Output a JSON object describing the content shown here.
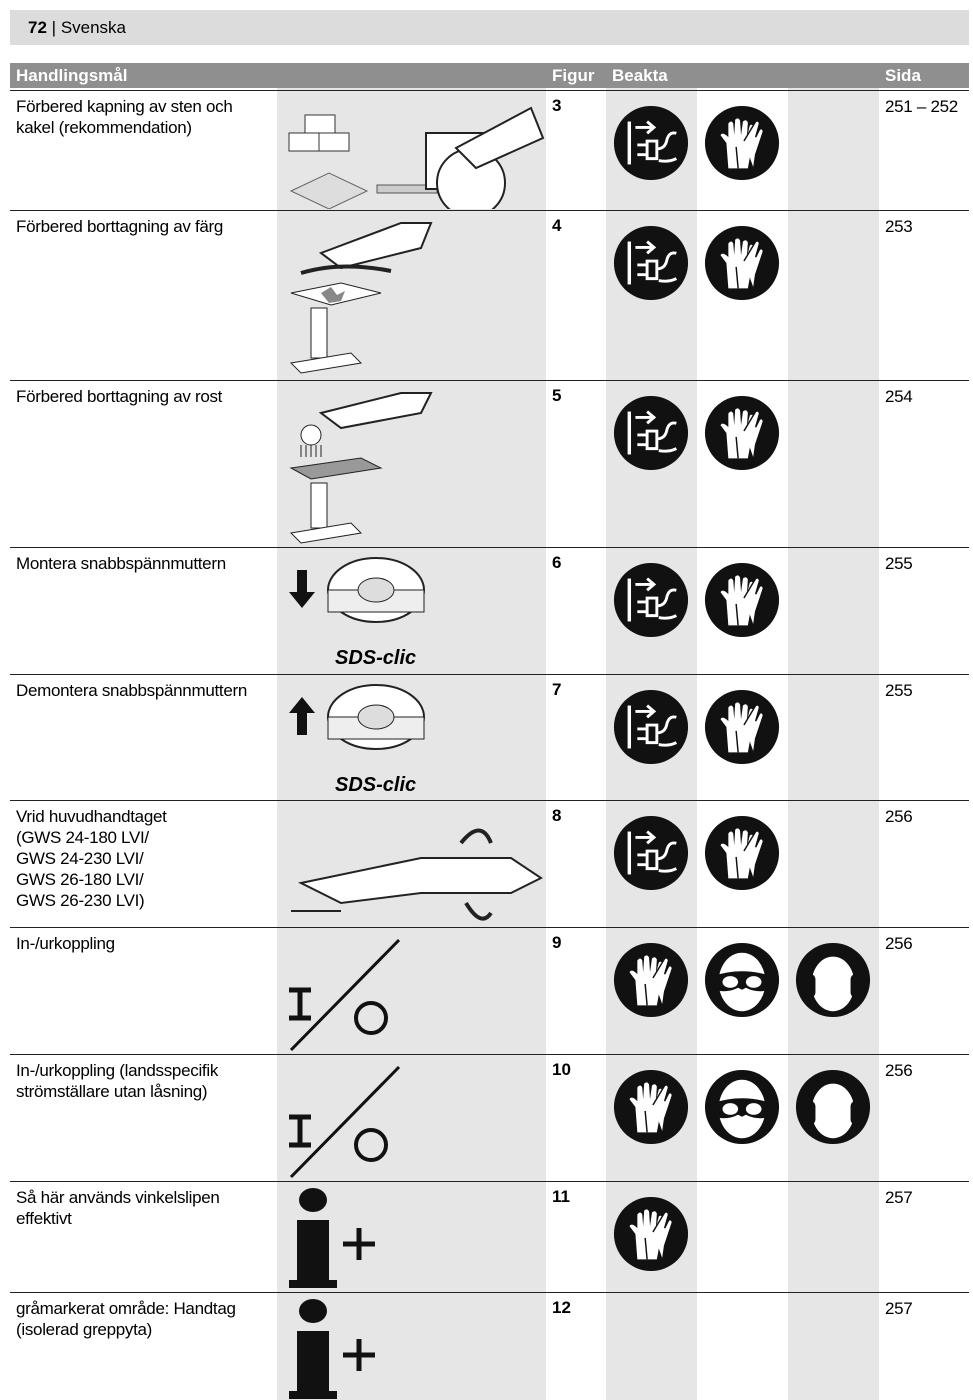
{
  "header": {
    "page_number": "72",
    "separator": "|",
    "section": "Svenska"
  },
  "table": {
    "columns": [
      "Handlingsmål",
      "Figur",
      "Beakta",
      "Sida"
    ],
    "rows": [
      {
        "action": "Förbered kapning av sten och kakel (rekommendation)",
        "figure": "3",
        "page": "251 – 252"
      },
      {
        "action": "Förbered borttagning av färg",
        "figure": "4",
        "page": "253"
      },
      {
        "action": "Förbered borttagning av rost",
        "figure": "5",
        "page": "254"
      },
      {
        "action": "Montera snabbspännmuttern",
        "figure": "6",
        "page": "255",
        "image_caption": "SDS-clic"
      },
      {
        "action": "Demontera snabbspännmuttern",
        "figure": "7",
        "page": "255",
        "image_caption": "SDS-clic"
      },
      {
        "action": "Vrid huvudhandtaget\n(GWS 24-180 LVI/\nGWS 24-230 LVI/\nGWS 26-180 LVI/\nGWS 26-230 LVI)",
        "figure": "8",
        "page": "256"
      },
      {
        "action": "In-/urkoppling",
        "figure": "9",
        "page": "256"
      },
      {
        "action": "In-/urkoppling (landsspecifik strömställare utan låsning)",
        "figure": "10",
        "page": "256"
      },
      {
        "action": "Så här används vinkelslipen effektivt",
        "figure": "11",
        "page": "257"
      },
      {
        "action": "gråmarkerat område: Handtag (isolerad greppyta)",
        "figure": "12",
        "page": "257"
      }
    ]
  }
}
